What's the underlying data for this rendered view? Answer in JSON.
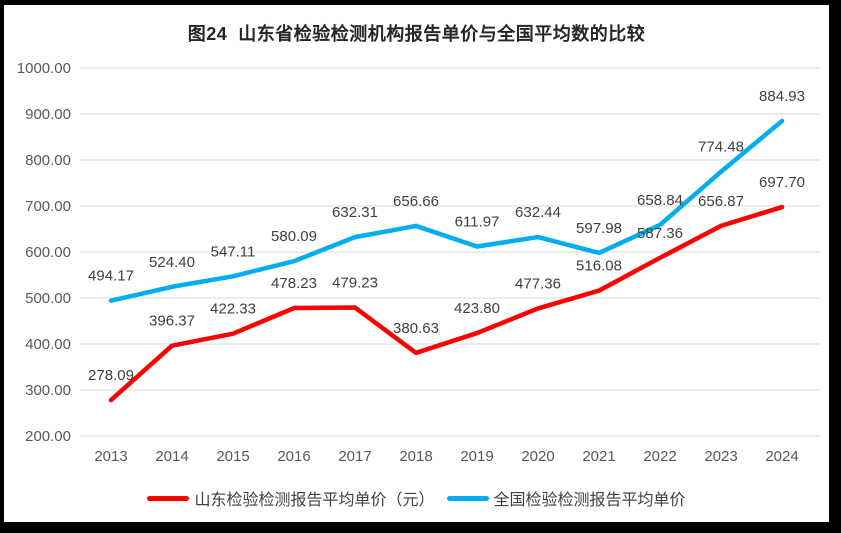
{
  "title": "图24  山东省检验检测机构报告单价与全国平均数的比较",
  "chart_data": {
    "type": "line",
    "title": "图24  山东省检验检测机构报告单价与全国平均数的比较",
    "categories": [
      "2013",
      "2014",
      "2015",
      "2016",
      "2017",
      "2018",
      "2019",
      "2020",
      "2021",
      "2022",
      "2023",
      "2024"
    ],
    "series": [
      {
        "name": "山东检验检测报告平均单价（元）",
        "color": "#fe0000",
        "values": [
          278.09,
          396.37,
          422.33,
          478.23,
          479.23,
          380.63,
          423.8,
          477.36,
          516.08,
          587.36,
          656.87,
          697.7
        ]
      },
      {
        "name": "全国检验检测报告平均单价",
        "color": "#00aeef",
        "values": [
          494.17,
          524.4,
          547.11,
          580.09,
          632.31,
          656.66,
          611.97,
          632.44,
          597.98,
          658.84,
          774.48,
          884.93
        ]
      }
    ],
    "ylim": [
      200,
      1000
    ],
    "ytick_step": 100,
    "yticks": [
      "1000.00",
      "900.00",
      "800.00",
      "700.00",
      "600.00",
      "500.00",
      "400.00",
      "300.00",
      "200.00"
    ],
    "xlabel": "",
    "ylabel": "",
    "grid": "horizontal",
    "gridline_color": "#d9d9d9",
    "data_labels": true,
    "data_label_decimals": 2,
    "legend_position": "bottom"
  }
}
